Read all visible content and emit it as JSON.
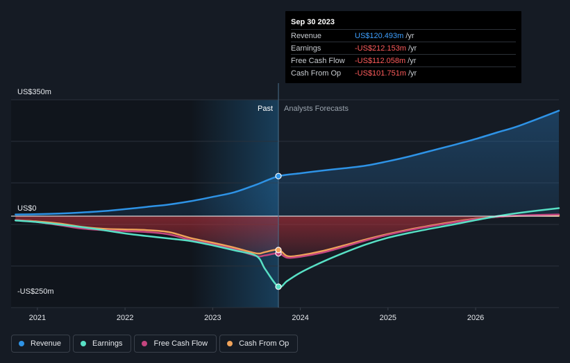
{
  "colors": {
    "background": "#151b24",
    "revenue": "#2e93e6",
    "earnings": "#58e0c5",
    "free_cash_flow": "#c4457f",
    "cash_from_op": "#f0a35a",
    "negative_value": "#ff5c5c",
    "revenue_value": "#3ea0ff"
  },
  "tooltip": {
    "date": "Sep 30 2023",
    "rows": [
      {
        "name": "Revenue",
        "value": "US$120.493m",
        "unit": "/yr",
        "color_key": "revenue_value"
      },
      {
        "name": "Earnings",
        "value": "-US$212.153m",
        "unit": "/yr",
        "color_key": "negative_value"
      },
      {
        "name": "Free Cash Flow",
        "value": "-US$112.058m",
        "unit": "/yr",
        "color_key": "negative_value"
      },
      {
        "name": "Cash From Op",
        "value": "-US$101.751m",
        "unit": "/yr",
        "color_key": "negative_value"
      }
    ]
  },
  "legend": [
    {
      "label": "Revenue",
      "icon": "revenue-dot-icon",
      "color_key": "revenue"
    },
    {
      "label": "Earnings",
      "icon": "earnings-dot-icon",
      "color_key": "earnings"
    },
    {
      "label": "Free Cash Flow",
      "icon": "free-cash-flow-dot-icon",
      "color_key": "free_cash_flow"
    },
    {
      "label": "Cash From Op",
      "icon": "cash-from-op-dot-icon",
      "color_key": "cash_from_op"
    }
  ],
  "chart_data": {
    "type": "line",
    "title": "",
    "xlabel": "",
    "ylabel": "",
    "ylim": [
      -250,
      350
    ],
    "xlim": [
      2020.7,
      2026.95
    ],
    "y_tick_labels": [
      {
        "value": 350,
        "label": "US$350m"
      },
      {
        "value": 0,
        "label": "US$0"
      },
      {
        "value": -250,
        "label": "-US$250m"
      }
    ],
    "x_ticks": [
      2021,
      2022,
      2023,
      2024,
      2025,
      2026
    ],
    "x_tick_labels": [
      "2021",
      "2022",
      "2023",
      "2024",
      "2025",
      "2026"
    ],
    "past_label": "Past",
    "forecast_label": "Analysts Forecasts",
    "past_end": 2023.75,
    "highlight_start": 2022.75,
    "series": [
      {
        "name": "Revenue",
        "color_key": "revenue",
        "fill": true,
        "x": [
          2020.75,
          2021.0,
          2021.25,
          2021.5,
          2021.75,
          2022.0,
          2022.25,
          2022.5,
          2022.75,
          2023.0,
          2023.25,
          2023.5,
          2023.75,
          2024.0,
          2024.25,
          2024.5,
          2024.75,
          2025.0,
          2025.25,
          2025.5,
          2025.75,
          2026.0,
          2026.25,
          2026.5,
          2026.95
        ],
        "values": [
          5,
          6,
          8,
          11,
          15,
          21,
          28,
          35,
          45,
          58,
          72,
          95,
          120,
          129,
          137,
          144,
          152,
          165,
          180,
          197,
          214,
          232,
          252,
          272,
          317
        ]
      },
      {
        "name": "Earnings",
        "color_key": "earnings",
        "fill": false,
        "x": [
          2020.75,
          2021.0,
          2021.25,
          2021.5,
          2021.75,
          2022.0,
          2022.25,
          2022.5,
          2022.75,
          2023.0,
          2023.25,
          2023.5,
          2023.6,
          2023.75,
          2023.85,
          2024.0,
          2024.25,
          2024.5,
          2024.75,
          2025.0,
          2025.25,
          2025.5,
          2025.75,
          2026.0,
          2026.25,
          2026.5,
          2026.95
        ],
        "values": [
          -13,
          -18,
          -25,
          -33,
          -42,
          -52,
          -60,
          -67,
          -75,
          -88,
          -103,
          -120,
          -160,
          -212,
          -195,
          -170,
          -138,
          -110,
          -85,
          -65,
          -50,
          -37,
          -25,
          -12,
          0,
          10,
          24
        ]
      },
      {
        "name": "Free Cash Flow",
        "color_key": "free_cash_flow",
        "fill": true,
        "x": [
          2020.75,
          2021.0,
          2021.25,
          2021.5,
          2021.75,
          2022.0,
          2022.25,
          2022.5,
          2022.75,
          2023.0,
          2023.25,
          2023.5,
          2023.6,
          2023.75,
          2023.85,
          2024.0,
          2024.25,
          2024.5,
          2024.75,
          2025.0,
          2025.25,
          2025.5,
          2025.75,
          2026.0,
          2026.25,
          2026.5,
          2026.95
        ],
        "values": [
          -12,
          -18,
          -27,
          -37,
          -42,
          -45,
          -48,
          -55,
          -72,
          -85,
          -100,
          -120,
          -118,
          -112,
          -125,
          -122,
          -110,
          -92,
          -73,
          -56,
          -42,
          -30,
          -19,
          -9,
          -2,
          2,
          5
        ]
      },
      {
        "name": "Cash From Op",
        "color_key": "cash_from_op",
        "fill": true,
        "x": [
          2020.75,
          2021.0,
          2021.25,
          2021.5,
          2021.75,
          2022.0,
          2022.25,
          2022.5,
          2022.75,
          2023.0,
          2023.25,
          2023.5,
          2023.6,
          2023.75,
          2023.85,
          2024.0,
          2024.25,
          2024.5,
          2024.75,
          2025.0,
          2025.25,
          2025.5,
          2025.75,
          2026.0,
          2026.25,
          2026.5,
          2026.95
        ],
        "values": [
          -12,
          -16,
          -22,
          -32,
          -38,
          -40,
          -42,
          -48,
          -66,
          -80,
          -95,
          -112,
          -108,
          -101,
          -120,
          -118,
          -105,
          -88,
          -70,
          -54,
          -40,
          -28,
          -17,
          -8,
          -2,
          1,
          1
        ]
      }
    ],
    "markers": [
      {
        "series": "Revenue",
        "x": 2023.75,
        "value": 120.493
      },
      {
        "series": "Earnings",
        "x": 2023.75,
        "value": -212.153
      },
      {
        "series": "Free Cash Flow",
        "x": 2023.75,
        "value": -112.058
      },
      {
        "series": "Cash From Op",
        "x": 2023.75,
        "value": -101.751
      }
    ]
  }
}
